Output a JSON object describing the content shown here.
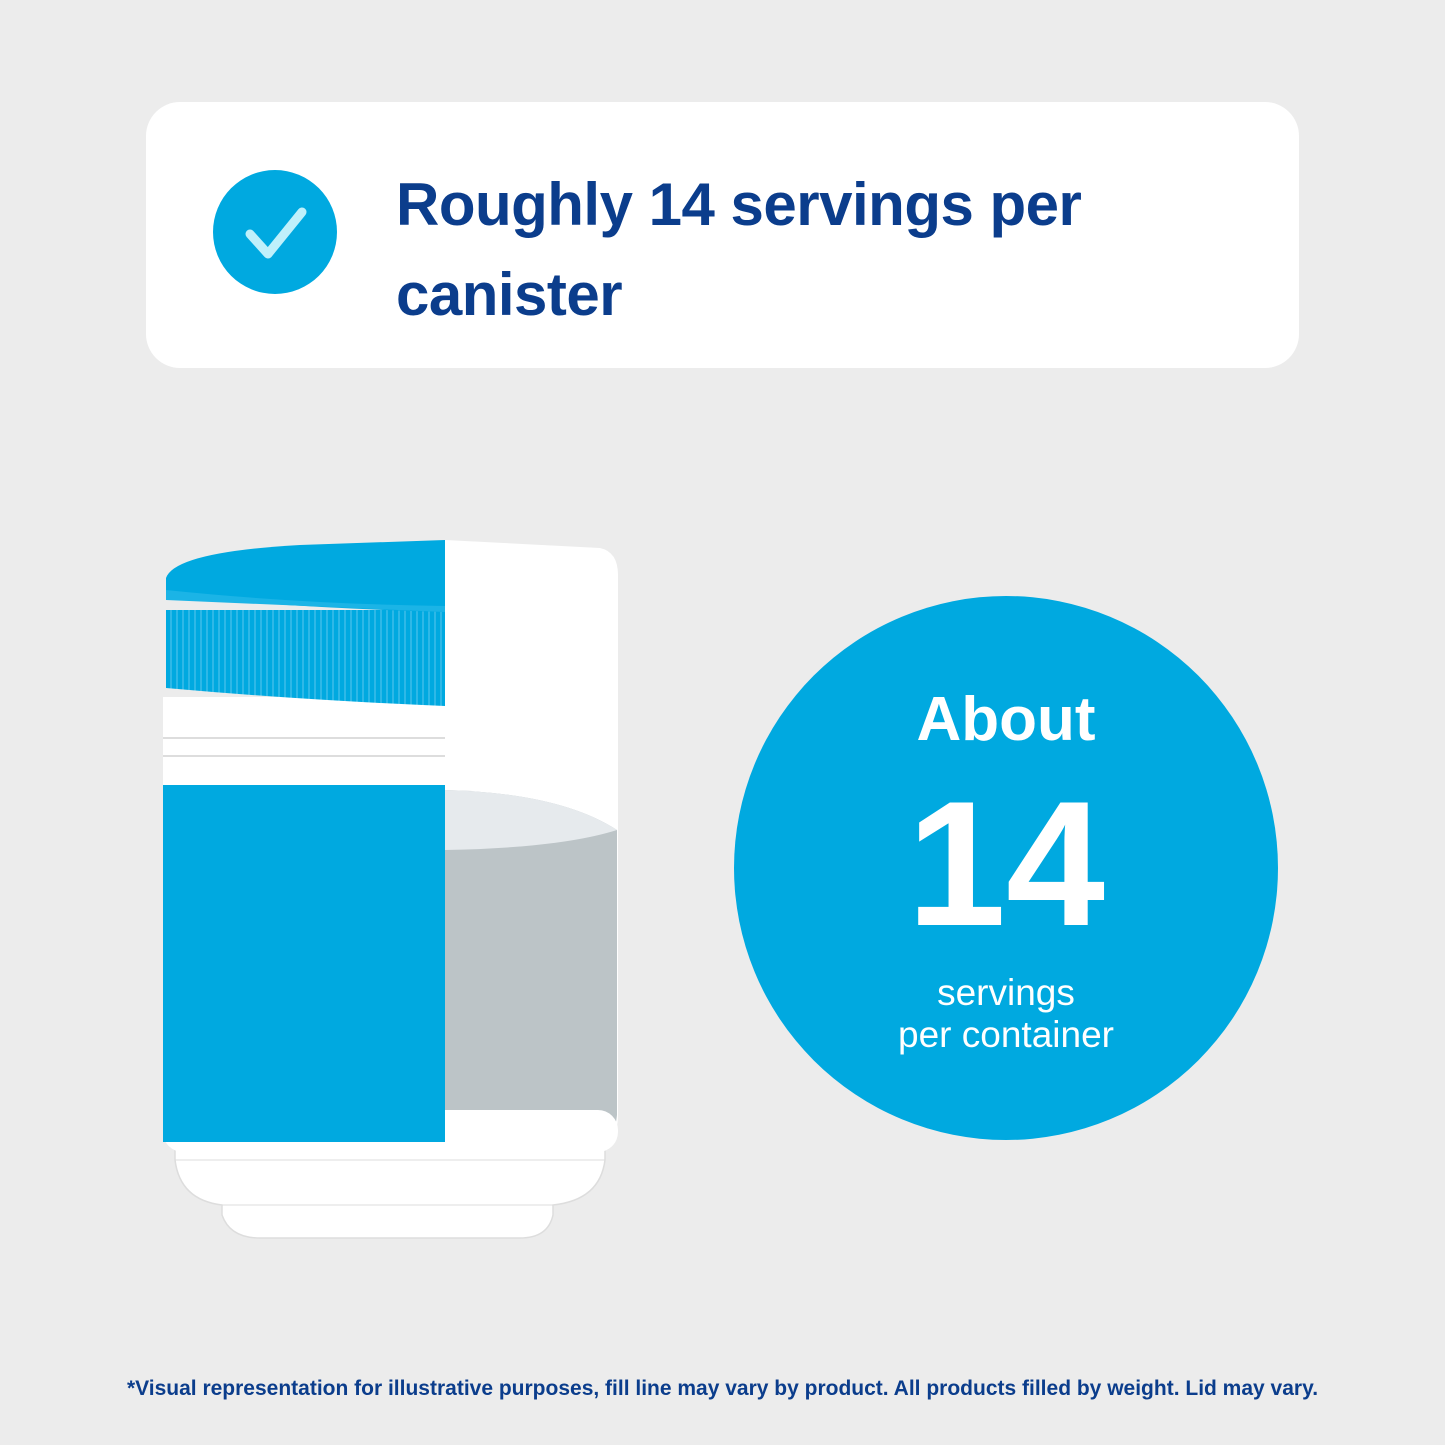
{
  "header": {
    "title": "Roughly 14 servings per canister"
  },
  "badge": {
    "prefix": "About",
    "number": "14",
    "unit_lines": [
      "servings",
      "per container"
    ]
  },
  "footnote": "*Visual representation for illustrative purposes, fill line may vary by product. All products filled by weight. Lid may vary."
}
